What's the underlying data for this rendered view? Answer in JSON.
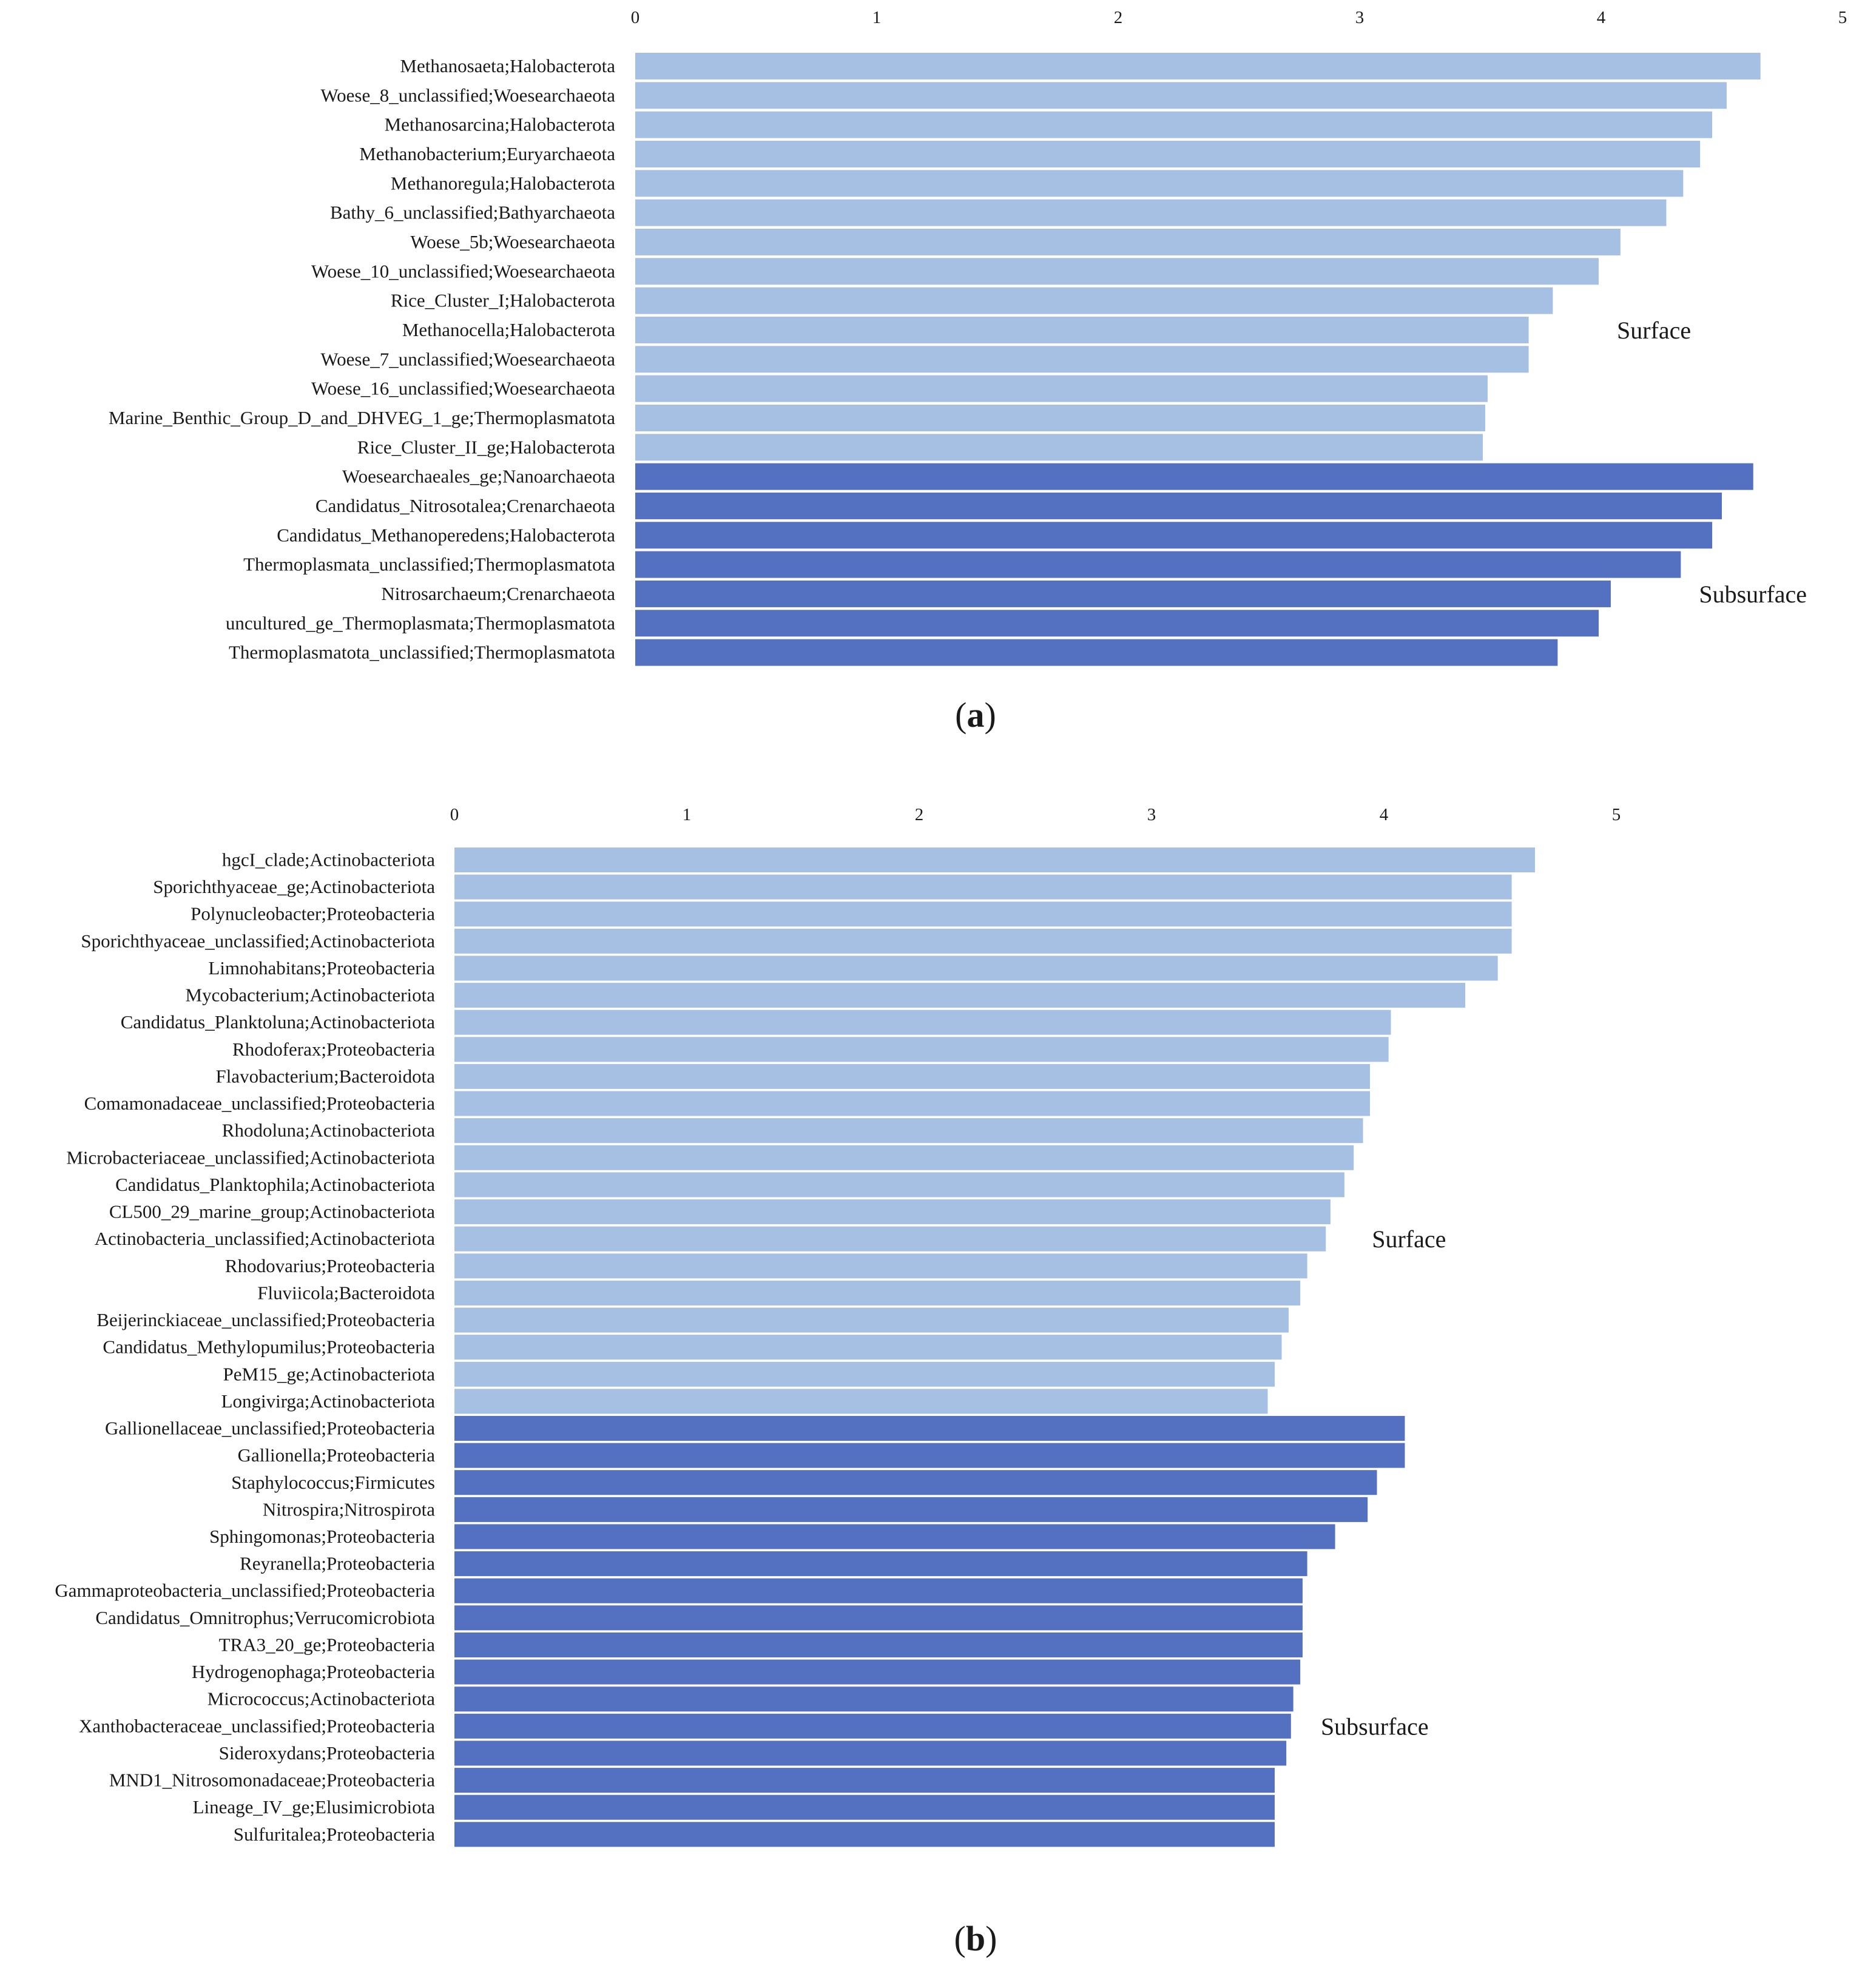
{
  "colors": {
    "surface": "#a6c0e3",
    "subsurface": "#5470c0",
    "text": "#1a1a1a"
  },
  "chart_data": [
    {
      "type": "bar",
      "orientation": "horizontal",
      "panel_label": {
        "open": "(",
        "letter": "a",
        "close": ")"
      },
      "xticks": [
        "0",
        "1",
        "2",
        "3",
        "4",
        "5"
      ],
      "xlim": [
        0,
        5
      ],
      "groups": [
        {
          "name": "Surface",
          "categories": [
            "Methanosaeta;Halobacterota",
            "Woese_8_unclassified;Woesearchaeota",
            "Methanosarcina;Halobacterota",
            "Methanobacterium;Euryarchaeota",
            "Methanoregula;Halobacterota",
            "Bathy_6_unclassified;Bathyarchaeota",
            "Woese_5b;Woesearchaeota",
            "Woese_10_unclassified;Woesearchaeota",
            "Rice_Cluster_I;Halobacterota",
            "Methanocella;Halobacterota",
            "Woese_7_unclassified;Woesearchaeota",
            "Woese_16_unclassified;Woesearchaeota",
            "Marine_Benthic_Group_D_and_DHVEG_1_ge;Thermoplasmatota",
            "Rice_Cluster_II_ge;Halobacterota"
          ],
          "values": [
            4.66,
            4.52,
            4.46,
            4.41,
            4.34,
            4.27,
            4.08,
            3.99,
            3.8,
            3.7,
            3.7,
            3.53,
            3.52,
            3.51
          ]
        },
        {
          "name": "Subsurface",
          "categories": [
            "Woesearchaeales_ge;Nanoarchaeota",
            "Candidatus_Nitrosotalea;Crenarchaeota",
            "Candidatus_Methanoperedens;Halobacterota",
            "Thermoplasmata_unclassified;Thermoplasmatota",
            "Nitrosarchaeum;Crenarchaeota",
            "uncultured_ge_Thermoplasmata;Thermoplasmatota",
            "Thermoplasmatota_unclassified;Thermoplasmatota"
          ],
          "values": [
            4.63,
            4.5,
            4.46,
            4.33,
            4.04,
            3.99,
            3.82
          ]
        }
      ]
    },
    {
      "type": "bar",
      "orientation": "horizontal",
      "panel_label": {
        "open": "(",
        "letter": "b",
        "close": ")"
      },
      "xticks": [
        "0",
        "1",
        "2",
        "3",
        "4",
        "5"
      ],
      "xlim": [
        0,
        5
      ],
      "groups": [
        {
          "name": "Surface",
          "categories": [
            "hgcI_clade;Actinobacteriota",
            "Sporichthyaceae_ge;Actinobacteriota",
            "Polynucleobacter;Proteobacteria",
            "Sporichthyaceae_unclassified;Actinobacteriota",
            "Limnohabitans;Proteobacteria",
            "Mycobacterium;Actinobacteriota",
            "Candidatus_Planktoluna;Actinobacteriota",
            "Rhodoferax;Proteobacteria",
            "Flavobacterium;Bacteroidota",
            "Comamonadaceae_unclassified;Proteobacteria",
            "Rhodoluna;Actinobacteriota",
            "Microbacteriaceae_unclassified;Actinobacteriota",
            "Candidatus_Planktophila;Actinobacteriota",
            "CL500_29_marine_group;Actinobacteriota",
            "Actinobacteria_unclassified;Actinobacteriota",
            "Rhodovarius;Proteobacteria",
            "Fluviicola;Bacteroidota",
            "Beijerinckiaceae_unclassified;Proteobacteria",
            "Candidatus_Methylopumilus;Proteobacteria",
            "PeM15_ge;Actinobacteriota",
            "Longivirga;Actinobacteriota"
          ],
          "values": [
            4.65,
            4.55,
            4.55,
            4.55,
            4.49,
            4.35,
            4.03,
            4.02,
            3.94,
            3.94,
            3.91,
            3.87,
            3.83,
            3.77,
            3.75,
            3.67,
            3.64,
            3.59,
            3.56,
            3.53,
            3.5
          ]
        },
        {
          "name": "Subsurface",
          "categories": [
            "Gallionellaceae_unclassified;Proteobacteria",
            "Gallionella;Proteobacteria",
            "Staphylococcus;Firmicutes",
            "Nitrospira;Nitrospirota",
            "Sphingomonas;Proteobacteria",
            "Reyranella;Proteobacteria",
            "Gammaproteobacteria_unclassified;Proteobacteria",
            "Candidatus_Omnitrophus;Verrucomicrobiota",
            "TRA3_20_ge;Proteobacteria",
            "Hydrogenophaga;Proteobacteria",
            "Micrococcus;Actinobacteriota",
            "Xanthobacteraceae_unclassified;Proteobacteria",
            "Sideroxydans;Proteobacteria",
            "MND1_Nitrosomonadaceae;Proteobacteria",
            "Lineage_IV_ge;Elusimicrobiota",
            "Sulfuritalea;Proteobacteria"
          ],
          "values": [
            4.09,
            4.09,
            3.97,
            3.93,
            3.79,
            3.67,
            3.65,
            3.65,
            3.65,
            3.64,
            3.61,
            3.6,
            3.58,
            3.53,
            3.53,
            3.53
          ]
        }
      ]
    }
  ]
}
